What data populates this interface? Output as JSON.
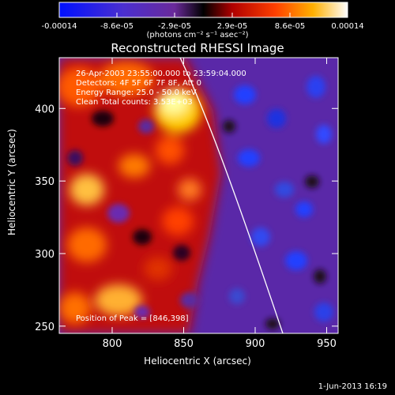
{
  "chart_data": {
    "type": "heatmap",
    "title": "Reconstructed RHESSI Image",
    "xlabel": "Heliocentric X (arcsec)",
    "ylabel": "Heliocentric Y (arcsec)",
    "xlim": [
      763,
      958
    ],
    "ylim": [
      245,
      435
    ],
    "x_ticks": [
      800,
      850,
      900,
      950
    ],
    "y_ticks": [
      250,
      300,
      350,
      400
    ],
    "colorbar": {
      "ticks": [
        "-0.00014",
        "-8.6e-05",
        "-2.9e-05",
        "2.9e-05",
        "8.6e-05",
        "0.00014"
      ],
      "min": -0.00014,
      "max": 0.00014,
      "units": "(photons cm⁻² s⁻¹ asec⁻²)"
    },
    "annotations": [
      "26-Apr-2003 23:55:00.000 to 23:59:04.000",
      "Detectors: 4F 5F 6F 7F 8F, Att 0",
      "Energy Range: 25.0 - 50.0 keV",
      "Clean     Total counts: 3.53E+03"
    ],
    "peak_label": "Position of Peak = [846,398]",
    "peak": [
      846,
      398
    ],
    "limb_curve": [
      [
        848,
        435
      ],
      [
        870,
        390
      ],
      [
        892,
        335
      ],
      [
        910,
        280
      ],
      [
        920,
        245
      ]
    ],
    "grid": false,
    "colormap": [
      "#0000ff",
      "#6a2fc0",
      "#000000",
      "#c00000",
      "#ff6a00",
      "#fff0a0",
      "#ffffff"
    ]
  },
  "footer": "1-Jun-2013 16:19"
}
